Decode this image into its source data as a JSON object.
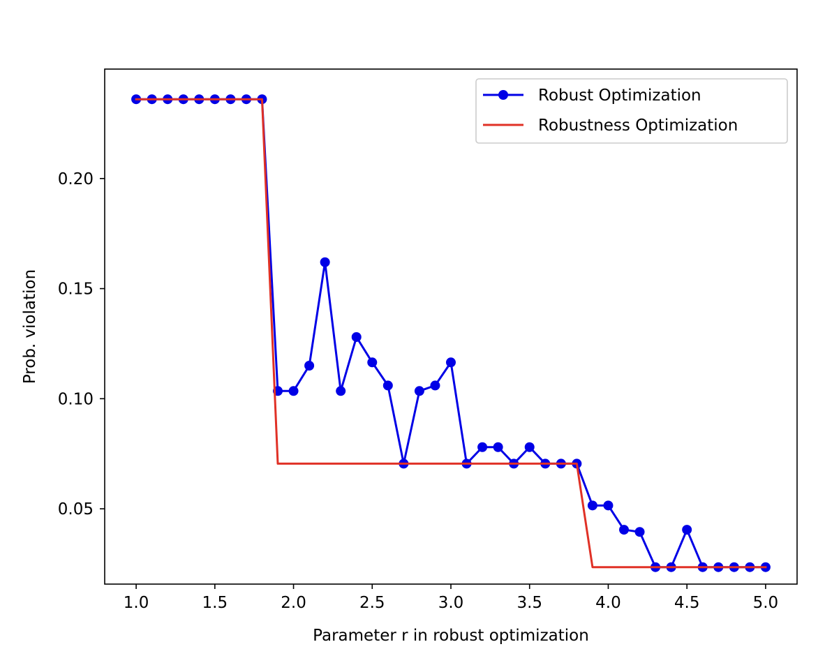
{
  "chart_data": {
    "type": "line",
    "title": "",
    "xlabel": "Parameter r in robust optimization",
    "ylabel": "Prob. violation",
    "xlim": [
      0.8,
      5.2
    ],
    "ylim": [
      0.0158,
      0.2497
    ],
    "xticks": [
      1.0,
      1.5,
      2.0,
      2.5,
      3.0,
      3.5,
      4.0,
      4.5,
      5.0
    ],
    "xtick_labels": [
      "1.0",
      "1.5",
      "2.0",
      "2.5",
      "3.0",
      "3.5",
      "4.0",
      "4.5",
      "5.0"
    ],
    "yticks": [
      0.05,
      0.1,
      0.15,
      0.2
    ],
    "ytick_labels": [
      "0.05",
      "0.10",
      "0.15",
      "0.20"
    ],
    "grid": false,
    "legend_position": "top-right",
    "x": [
      1.0,
      1.1,
      1.2,
      1.3,
      1.4,
      1.5,
      1.6,
      1.7,
      1.8,
      1.9,
      2.0,
      2.1,
      2.2,
      2.3,
      2.4,
      2.5,
      2.6,
      2.7,
      2.8,
      2.9,
      3.0,
      3.1,
      3.2,
      3.3,
      3.4,
      3.5,
      3.6,
      3.7,
      3.8,
      3.9,
      4.0,
      4.1,
      4.2,
      4.3,
      4.4,
      4.5,
      4.6,
      4.7,
      4.8,
      4.9,
      5.0
    ],
    "series": [
      {
        "name": "Robust Optimization",
        "color": "#0000e6",
        "marker": "circle",
        "values": [
          0.236,
          0.236,
          0.236,
          0.236,
          0.236,
          0.236,
          0.236,
          0.236,
          0.236,
          0.1035,
          0.1035,
          0.115,
          0.162,
          0.1035,
          0.128,
          0.1165,
          0.106,
          0.0705,
          0.1035,
          0.106,
          0.1165,
          0.0705,
          0.078,
          0.078,
          0.0705,
          0.078,
          0.0705,
          0.0705,
          0.0705,
          0.0515,
          0.0515,
          0.0405,
          0.0395,
          0.0235,
          0.0235,
          0.0405,
          0.0235,
          0.0235,
          0.0235,
          0.0235,
          0.0235
        ]
      },
      {
        "name": "Robustness Optimization",
        "color": "#e03126",
        "marker": "none",
        "values": [
          0.236,
          0.236,
          0.236,
          0.236,
          0.236,
          0.236,
          0.236,
          0.236,
          0.236,
          0.0705,
          0.0705,
          0.0705,
          0.0705,
          0.0705,
          0.0705,
          0.0705,
          0.0705,
          0.0705,
          0.0705,
          0.0705,
          0.0705,
          0.0705,
          0.0705,
          0.0705,
          0.0705,
          0.0705,
          0.0705,
          0.0705,
          0.0705,
          0.0235,
          0.0235,
          0.0235,
          0.0235,
          0.0235,
          0.0235,
          0.0235,
          0.0235,
          0.0235,
          0.0235,
          0.0235,
          0.0235
        ]
      }
    ]
  }
}
